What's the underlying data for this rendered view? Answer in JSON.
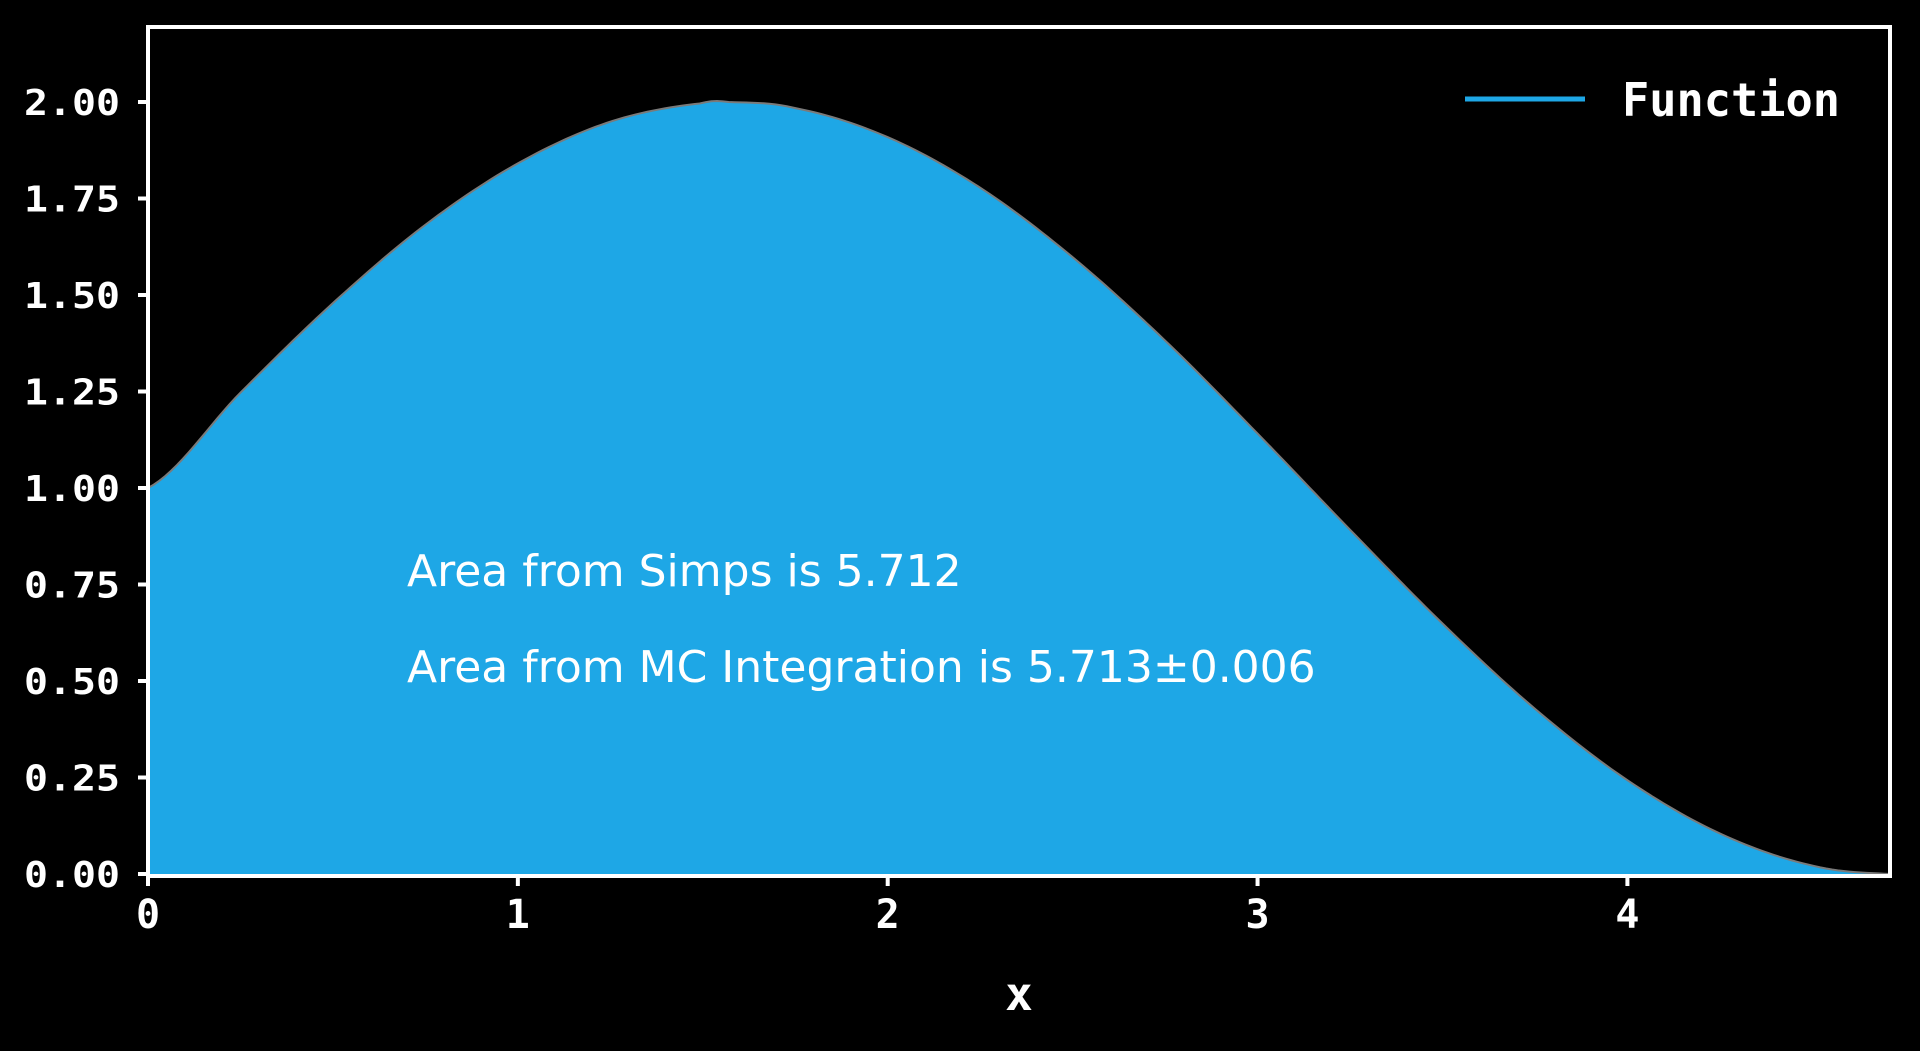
{
  "chart_data": {
    "type": "area",
    "function_samples": {
      "x": [
        0,
        0.25,
        0.5,
        0.75,
        1.0,
        1.25,
        1.5,
        1.57,
        1.75,
        2.0,
        2.25,
        2.5,
        2.75,
        3.0,
        3.25,
        3.5,
        3.75,
        4.0,
        4.25,
        4.5,
        4.71
      ],
      "y": [
        1.0,
        1.247,
        1.479,
        1.682,
        1.841,
        1.949,
        1.997,
        2.0,
        1.984,
        1.909,
        1.778,
        1.598,
        1.382,
        1.141,
        0.892,
        0.649,
        0.428,
        0.243,
        0.105,
        0.022,
        0.0
      ]
    },
    "series": [
      {
        "name": "Function",
        "color": "#1ea7e6"
      }
    ],
    "xlabel": "x",
    "ylabel": "",
    "xlim": [
      0,
      4.71
    ],
    "ylim": [
      0.0,
      2.0
    ],
    "xticks": [
      0,
      1,
      2,
      3,
      4
    ],
    "xtick_labels": [
      "0",
      "1",
      "2",
      "3",
      "4"
    ],
    "yticks": [
      0.0,
      0.25,
      0.5,
      0.75,
      1.0,
      1.25,
      1.5,
      1.75,
      2.0
    ],
    "ytick_labels": [
      "0.00",
      "0.25",
      "0.50",
      "0.75",
      "1.00",
      "1.25",
      "1.50",
      "1.75",
      "2.00"
    ],
    "legend_placement": "top-right",
    "grid": false,
    "annotations": [
      "Area from Simps is 5.712",
      "Area from MC Integration is 5.713±0.006"
    ],
    "colors": {
      "background": "#000000",
      "fill": "#1ea7e6",
      "curve_edge": "#7a7a7a",
      "axes": "#ffffff",
      "text": "#ffffff"
    }
  }
}
